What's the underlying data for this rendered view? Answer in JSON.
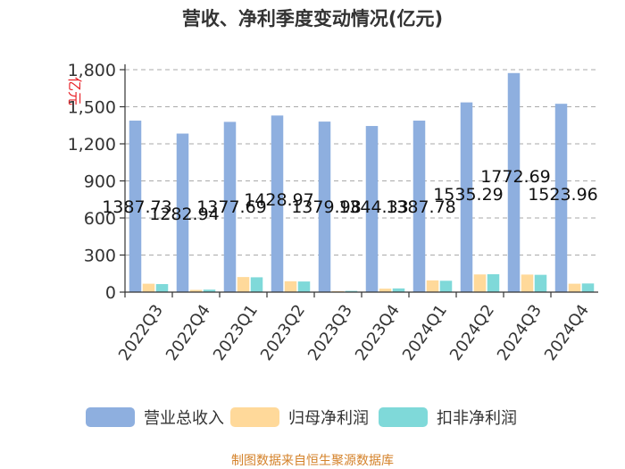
{
  "chart_data": {
    "type": "bar",
    "title": "营收、净利季度变动情况(亿元)",
    "ylabel": "亿元",
    "xlabel": "",
    "ylim": [
      0,
      1800
    ],
    "yticks": [
      0,
      300,
      600,
      900,
      1200,
      1500,
      1800
    ],
    "ytick_labels": [
      "0",
      "300",
      "600",
      "900",
      "1,200",
      "1,500",
      "1,800"
    ],
    "grid": true,
    "legend_position": "bottom",
    "categories": [
      "2022Q3",
      "2022Q4",
      "2023Q1",
      "2023Q2",
      "2023Q3",
      "2023Q4",
      "2024Q1",
      "2024Q2",
      "2024Q3",
      "2024Q4"
    ],
    "series": [
      {
        "name": "营业总收入",
        "color": "#8eafdf",
        "values": [
          1387.73,
          1282.94,
          1377.69,
          1428.97,
          1379.98,
          1344.33,
          1387.78,
          1535.29,
          1772.69,
          1523.96
        ],
        "data_labels": [
          "1387.73",
          "1282.94",
          "1377.69",
          "1428.97",
          "1379.98",
          "1344.33",
          "1387.78",
          "1535.29",
          "1772.69",
          "1523.96"
        ]
      },
      {
        "name": "归母净利润",
        "color": "#ffd99a",
        "values": [
          68,
          18,
          122,
          88,
          8,
          28,
          95,
          143,
          142,
          68
        ]
      },
      {
        "name": "扣非净利润",
        "color": "#7fd9d9",
        "values": [
          65,
          20,
          120,
          86,
          10,
          30,
          92,
          145,
          140,
          70
        ]
      }
    ]
  },
  "source_text": "制图数据来自恒生聚源数据库"
}
